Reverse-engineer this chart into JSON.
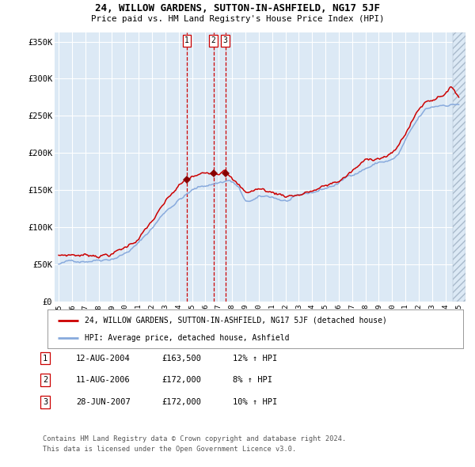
{
  "title1": "24, WILLOW GARDENS, SUTTON-IN-ASHFIELD, NG17 5JF",
  "title2": "Price paid vs. HM Land Registry's House Price Index (HPI)",
  "ylabel_ticks": [
    "£0",
    "£50K",
    "£100K",
    "£150K",
    "£200K",
    "£250K",
    "£300K",
    "£350K"
  ],
  "ylabel_values": [
    0,
    50000,
    100000,
    150000,
    200000,
    250000,
    300000,
    350000
  ],
  "ylim": [
    0,
    362000
  ],
  "xlim_start": 1994.7,
  "xlim_end": 2025.5,
  "bg_color": "#dce9f5",
  "outer_bg": "#f0f4fa",
  "grid_color": "#ffffff",
  "red_line_color": "#cc0000",
  "blue_line_color": "#88aadd",
  "sale_color": "#880000",
  "vline_color": "#cc0000",
  "transactions": [
    {
      "label": "1",
      "date_num": 2004.61,
      "price": 163500
    },
    {
      "label": "2",
      "date_num": 2006.61,
      "price": 172000
    },
    {
      "label": "3",
      "date_num": 2007.49,
      "price": 172000
    }
  ],
  "legend_line1": "24, WILLOW GARDENS, SUTTON-IN-ASHFIELD, NG17 5JF (detached house)",
  "legend_line2": "HPI: Average price, detached house, Ashfield",
  "table_rows": [
    {
      "num": "1",
      "date": "12-AUG-2004",
      "price": "£163,500",
      "note": "12% ↑ HPI"
    },
    {
      "num": "2",
      "date": "11-AUG-2006",
      "price": "£172,000",
      "note": "8% ↑ HPI"
    },
    {
      "num": "3",
      "date": "28-JUN-2007",
      "price": "£172,000",
      "note": "10% ↑ HPI"
    }
  ],
  "footer1": "Contains HM Land Registry data © Crown copyright and database right 2024.",
  "footer2": "This data is licensed under the Open Government Licence v3.0."
}
